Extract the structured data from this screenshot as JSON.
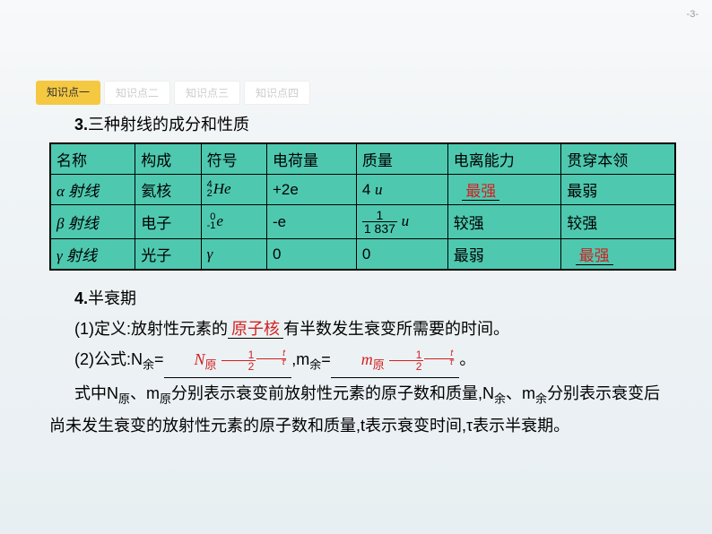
{
  "pageNumber": "-3-",
  "tabs": [
    {
      "label": "知识点一",
      "active": true
    },
    {
      "label": "知识点二",
      "active": false
    },
    {
      "label": "知识点三",
      "active": false
    },
    {
      "label": "知识点四",
      "active": false
    }
  ],
  "section3": {
    "num": "3.",
    "title": "三种射线的成分和性质"
  },
  "table": {
    "headers": [
      "名称",
      "构成",
      "符号",
      "电荷量",
      "质量",
      "电离能力",
      "贯穿本领"
    ],
    "rows": [
      {
        "name": "α 射线",
        "composition": "氦核",
        "symbol_sup": "4",
        "symbol_sub": "2",
        "symbol_main": "He",
        "charge": "+2e",
        "mass_plain": "4 ",
        "mass_unit": "u",
        "ionization": "最强",
        "ionization_is_blank": true,
        "penetration": "最弱",
        "penetration_is_blank": false
      },
      {
        "name": "β 射线",
        "composition": "电子",
        "symbol_sup": "0",
        "symbol_sub": "-1",
        "symbol_main": "e",
        "charge": "-e",
        "mass_frac_num": "1",
        "mass_frac_den": "1 837",
        "mass_unit": "u",
        "ionization": "较强",
        "ionization_is_blank": false,
        "penetration": "较强",
        "penetration_is_blank": false
      },
      {
        "name": "γ 射线",
        "composition": "光子",
        "symbol_plain": "γ",
        "charge": "0",
        "mass_plain": "0",
        "ionization": "最弱",
        "ionization_is_blank": false,
        "penetration": "最强",
        "penetration_is_blank": true
      }
    ]
  },
  "section4": {
    "num": "4.",
    "title": "半衰期",
    "def_prefix": "(1)定义:放射性元素的",
    "def_blank": "原子核",
    "def_suffix": "有半数发生衰变所需要的时间。",
    "formula_prefix": "(2)公式:N",
    "sub_yu": "余",
    "eq": "=",
    "N_orig": "N",
    "sub_orig": "原",
    "half_num": "1",
    "half_den": "2",
    "expo_t": "𝑡",
    "expo_tau": "𝜏",
    "mid": ",m",
    "m_orig": "m",
    "suffix": "。",
    "explain1a": "式中N",
    "explain1b": "、m",
    "explain1c": "分别表示衰变前放射性元素的原子数和质量,N",
    "explain1d": "、m",
    "explain2": "分别表示衰变后尚未发生衰变的放射性元素的原子数和质量,t表示衰变时间,τ表示半衰期。"
  },
  "colors": {
    "tableBg": "#4ec9b0",
    "red": "#d32020",
    "tabActive": "#f5c842"
  }
}
